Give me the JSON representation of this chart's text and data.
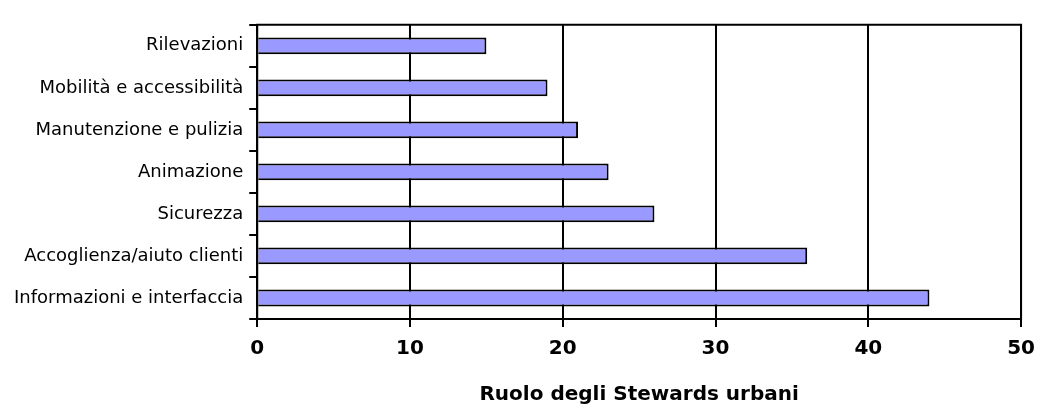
{
  "chart_data": {
    "type": "bar",
    "orientation": "horizontal",
    "xlabel": "Ruolo degli Stewards urbani",
    "categories": [
      "Rilevazioni",
      "Mobilità e accessibilità",
      "Manutenzione e pulizia",
      "Animazione",
      "Sicurezza",
      "Accoglienza/aiuto clienti",
      "Informazioni e interfaccia"
    ],
    "values": [
      15,
      19,
      21,
      23,
      26,
      36,
      44
    ],
    "color": "#9999ff",
    "xlim": [
      0,
      50
    ],
    "xticks": [
      0,
      10,
      20,
      30,
      40,
      50
    ],
    "grid": "x",
    "legend": false
  }
}
